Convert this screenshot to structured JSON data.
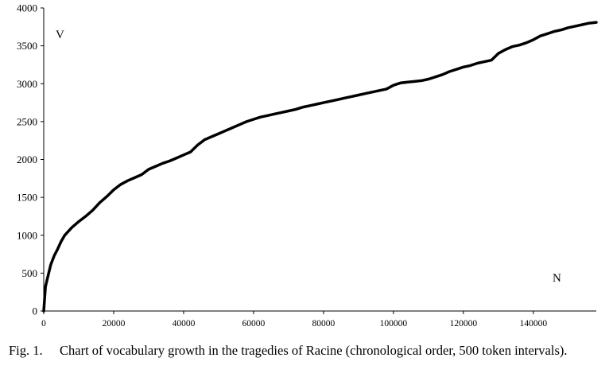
{
  "chart_data": {
    "type": "line",
    "xlabel": "N",
    "ylabel": "V",
    "xlim": [
      0,
      158000
    ],
    "ylim": [
      0,
      4000
    ],
    "x_ticks": [
      "0",
      "20000",
      "40000",
      "60000",
      "80000",
      "100000",
      "120000",
      "140000"
    ],
    "y_ticks": [
      "0",
      "500",
      "1000",
      "1500",
      "2000",
      "2500",
      "3000",
      "3500",
      "4000"
    ],
    "grid": false,
    "series": [
      {
        "color": "#000000",
        "x": [
          0,
          500,
          1000,
          2000,
          3000,
          4000,
          5000,
          6000,
          8000,
          10000,
          12000,
          14000,
          16000,
          18000,
          20000,
          22000,
          24000,
          26000,
          28000,
          30000,
          32000,
          34000,
          36000,
          38000,
          40000,
          42000,
          44000,
          46000,
          48000,
          50000,
          52000,
          54000,
          56000,
          58000,
          60000,
          62000,
          64000,
          66000,
          68000,
          70000,
          72000,
          74000,
          76000,
          78000,
          80000,
          82000,
          84000,
          86000,
          88000,
          90000,
          92000,
          94000,
          96000,
          98000,
          100000,
          102000,
          104000,
          106000,
          108000,
          110000,
          112000,
          114000,
          116000,
          118000,
          120000,
          122000,
          124000,
          126000,
          128000,
          130000,
          132000,
          134000,
          136000,
          138000,
          140000,
          142000,
          144000,
          146000,
          148000,
          150000,
          152000,
          154000,
          156000,
          158000
        ],
        "y": [
          0,
          320,
          420,
          610,
          730,
          820,
          920,
          1000,
          1100,
          1180,
          1250,
          1330,
          1430,
          1510,
          1600,
          1670,
          1720,
          1760,
          1800,
          1870,
          1910,
          1950,
          1980,
          2020,
          2060,
          2100,
          2190,
          2260,
          2300,
          2340,
          2380,
          2420,
          2460,
          2500,
          2530,
          2560,
          2580,
          2600,
          2620,
          2640,
          2660,
          2690,
          2710,
          2730,
          2750,
          2770,
          2790,
          2810,
          2830,
          2850,
          2870,
          2890,
          2910,
          2930,
          2980,
          3010,
          3020,
          3030,
          3040,
          3060,
          3090,
          3120,
          3160,
          3190,
          3220,
          3240,
          3270,
          3290,
          3310,
          3400,
          3450,
          3490,
          3510,
          3540,
          3580,
          3630,
          3660,
          3690,
          3710,
          3740,
          3760,
          3780,
          3800,
          3810
        ]
      }
    ]
  },
  "caption": {
    "number": "Fig. 1.",
    "text": "Chart of vocabulary growth in the tragedies of Racine (chronological order, 500 token intervals)."
  }
}
